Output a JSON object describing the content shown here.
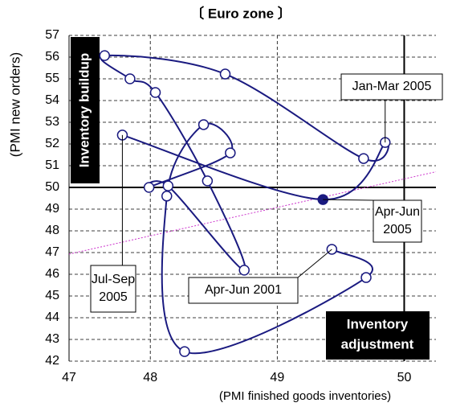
{
  "chart_data": {
    "type": "line",
    "title": "〔 Euro zone 〕",
    "x_label": "(PMI finished goods inventories)",
    "y_label": "(PMI new orders)",
    "xlim": [
      47.36,
      50.25
    ],
    "xticks": [
      {
        "value": 47.36,
        "label": "47"
      },
      48,
      49,
      50
    ],
    "ylim": [
      42,
      57
    ],
    "yticks": [
      42,
      43,
      44,
      45,
      46,
      47,
      48,
      49,
      50,
      51,
      52,
      53,
      54,
      55,
      56,
      57
    ],
    "grid": true,
    "quadrant_lines": {
      "x": 50,
      "y": 50
    },
    "series": [
      {
        "color": "#1a1a80",
        "x": [
          49.43,
          49.7,
          48.27,
          48.13,
          48.42,
          48.63,
          47.99,
          48.14,
          48.74,
          48.45,
          48.04,
          47.84,
          47.64,
          48.59,
          49.68,
          49.85,
          49.36,
          47.78
        ],
        "values": [
          47.15,
          45.85,
          42.44,
          49.6,
          52.89,
          51.59,
          50.0,
          50.07,
          46.19,
          50.3,
          54.37,
          55.0,
          56.07,
          55.22,
          51.33,
          52.07,
          49.44,
          52.41
        ],
        "highlight_point": 16
      }
    ],
    "trend_line": {
      "x": [
        47.36,
        50.25
      ],
      "y": [
        46.93,
        50.72
      ],
      "color": "#cc33cc"
    },
    "quadrant_labels": [
      {
        "text": "Inventory buildup"
      },
      {
        "lines": [
          "Inventory",
          "adjustment"
        ]
      }
    ],
    "annotations": [
      {
        "lines": [
          "Jan-Mar 2005"
        ],
        "point": 15
      },
      {
        "lines": [
          "Apr-Jun",
          "2005"
        ],
        "point": 16
      },
      {
        "lines": [
          "Jul-Sep",
          "2005"
        ],
        "point": 17
      },
      {
        "lines": [
          "Apr-Jun 2001"
        ],
        "point": 0
      }
    ]
  }
}
